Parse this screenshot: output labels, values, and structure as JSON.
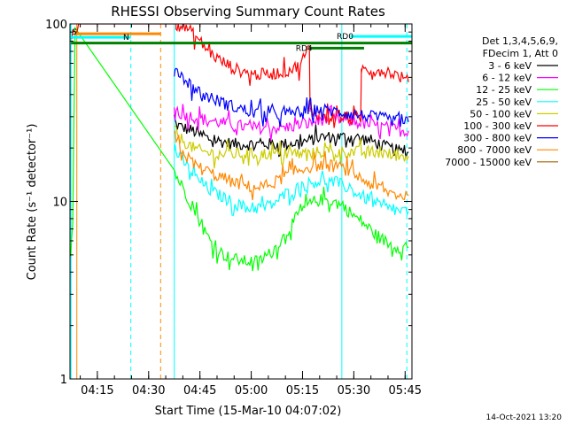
{
  "chart_data": {
    "type": "line",
    "title": "RHESSI Observing Summary Count Rates",
    "xlabel": "Start Time (15-Mar-10 04:07:02)",
    "ylabel": "Count Rate (s⁻¹ detector⁻¹)",
    "yscale": "log",
    "ylim": [
      1,
      100
    ],
    "xlim_minutes": [
      7.0,
      107.0
    ],
    "x_start": "04:07:00",
    "x_ticks": [
      {
        "minute": 15,
        "label": "04:15"
      },
      {
        "minute": 30,
        "label": "04:30"
      },
      {
        "minute": 45,
        "label": "04:45"
      },
      {
        "minute": 60,
        "label": "05:00"
      },
      {
        "minute": 75,
        "label": "05:15"
      },
      {
        "minute": 90,
        "label": "05:30"
      },
      {
        "minute": 105,
        "label": "05:45"
      }
    ],
    "y_ticks": [
      {
        "value": 1,
        "label": "1"
      },
      {
        "value": 10,
        "label": "10"
      },
      {
        "value": 100,
        "label": "100"
      }
    ],
    "legend": {
      "header": [
        "Det 1,3,4,5,6,9,",
        "FDecim 1, Att 0"
      ],
      "placement": "right"
    },
    "series": [
      {
        "name": "3 - 6 keV",
        "color": "#000000",
        "x": [
          37.5,
          38,
          40,
          43,
          46,
          50,
          55,
          60,
          65,
          70,
          74,
          77,
          80,
          85,
          90,
          95,
          100,
          104,
          106
        ],
        "y": [
          30,
          27,
          26,
          25,
          23,
          22,
          21,
          21,
          21,
          21,
          21.5,
          22,
          23,
          23,
          23,
          22,
          20,
          19,
          19
        ]
      },
      {
        "name": "6 - 12 keV",
        "color": "#ff00ff",
        "x": [
          37.5,
          38,
          40,
          43,
          46,
          50,
          55,
          60,
          65,
          70,
          74,
          77,
          80,
          85,
          90,
          95,
          100,
          104,
          106
        ],
        "y": [
          33,
          32,
          31,
          30,
          29,
          28,
          27,
          26,
          26,
          26,
          27,
          27.5,
          29,
          29,
          28,
          27,
          26,
          25,
          25
        ]
      },
      {
        "name": "12 - 25 keV",
        "color": "#00ff00",
        "x": [
          7.2,
          7.8,
          8.5,
          37.5,
          38,
          40,
          42,
          44,
          46,
          48,
          50,
          52,
          54,
          56,
          58,
          60,
          62,
          64,
          66,
          68,
          70,
          72,
          74,
          76,
          78,
          80,
          82,
          84,
          86,
          88,
          90,
          92,
          94,
          96,
          98,
          100,
          102,
          104,
          106
        ],
        "y": [
          5,
          8,
          95,
          15,
          14,
          12,
          10,
          8.5,
          7,
          6,
          5.4,
          5,
          4.8,
          4.7,
          4.6,
          4.6,
          4.6,
          4.8,
          5.2,
          5.8,
          6.5,
          7.5,
          8.5,
          9.3,
          9.9,
          10.2,
          10.2,
          10,
          9.6,
          9,
          8.3,
          7.8,
          7.2,
          6.6,
          6.2,
          5.8,
          5.6,
          5.5,
          5.5
        ]
      },
      {
        "name": "25 - 50 keV",
        "color": "#00ffff",
        "x": [
          37.5,
          38,
          40,
          42,
          44,
          46,
          48,
          50,
          52,
          54,
          56,
          58,
          60,
          62,
          64,
          66,
          68,
          70,
          72,
          74,
          76,
          78,
          80,
          82,
          84,
          86,
          88,
          90,
          92,
          94,
          96,
          98,
          100,
          102,
          104,
          106
        ],
        "y": [
          20,
          19,
          17,
          15,
          13.5,
          12.5,
          11.5,
          11,
          10.5,
          10,
          9.6,
          9.3,
          9.2,
          9.2,
          9.3,
          9.6,
          10.2,
          11,
          11.5,
          12,
          12.5,
          12.8,
          13,
          13,
          12.8,
          12.5,
          12,
          11.4,
          10.8,
          10.3,
          9.8,
          9.4,
          9.1,
          8.9,
          8.8,
          8.8
        ]
      },
      {
        "name": "50 - 100 keV",
        "color": "#cccc00",
        "x": [
          37.5,
          38,
          40,
          43,
          46,
          50,
          55,
          60,
          65,
          70,
          74,
          77,
          80,
          85,
          90,
          95,
          100,
          104,
          106
        ],
        "y": [
          25,
          24,
          22,
          20,
          19,
          18.5,
          18.5,
          18.5,
          18.5,
          18.5,
          18.5,
          18.5,
          19,
          19,
          19,
          19,
          18.5,
          18,
          18
        ]
      },
      {
        "name": "100 - 300 keV",
        "color": "#ff0000",
        "x": [
          7.5,
          8.3,
          9.0,
          9.5,
          38,
          39,
          41,
          43,
          45,
          47,
          50,
          55,
          60,
          65,
          70,
          74,
          76,
          77,
          77.2,
          80,
          85,
          90,
          92,
          92.2,
          95,
          100,
          104,
          106
        ],
        "y": [
          85,
          90,
          96,
          100,
          100,
          98,
          95,
          88,
          80,
          72,
          64,
          56,
          52,
          52,
          54,
          58,
          68,
          75,
          32,
          31,
          30,
          29,
          28,
          56,
          55,
          54,
          50,
          47
        ]
      },
      {
        "name": "300 - 800 keV",
        "color": "#0000ff",
        "x": [
          37.5,
          38,
          40,
          43,
          46,
          50,
          55,
          60,
          65,
          70,
          74,
          77,
          80,
          85,
          90,
          95,
          100,
          104,
          106
        ],
        "y": [
          60,
          56,
          50,
          44,
          40,
          37,
          34,
          32,
          31,
          31,
          32,
          32,
          33,
          32,
          31,
          30,
          29,
          28,
          28
        ]
      },
      {
        "name": "800 - 7000 keV",
        "color": "#ff8800",
        "x": [
          37.5,
          38,
          40,
          42,
          44,
          46,
          48,
          50,
          52,
          54,
          56,
          58,
          60,
          62,
          64,
          66,
          68,
          70,
          72,
          74,
          76,
          78,
          80,
          82,
          84,
          86,
          88,
          90,
          92,
          94,
          96,
          98,
          100,
          102,
          104,
          106
        ],
        "y": [
          24,
          22,
          19,
          17,
          16,
          15,
          14.5,
          14,
          13.5,
          13,
          12.6,
          12.3,
          12,
          12,
          12.2,
          12.6,
          13.2,
          14,
          14.5,
          15,
          15.5,
          15.8,
          16,
          16,
          15.8,
          15.5,
          15,
          14.3,
          13.5,
          12.8,
          12.2,
          11.7,
          11.3,
          11,
          10.8,
          10.8
        ]
      },
      {
        "name": "7000 - 15000 keV",
        "color": "#a06000",
        "x": [],
        "y": []
      }
    ],
    "flags": [
      {
        "label": "S",
        "color": "#00ffff",
        "x_range": [
          7.0,
          7.3
        ],
        "y": 90
      },
      {
        "label": "",
        "color": "#ff8800",
        "x_range": [
          8.3,
          33.5
        ],
        "y": 88
      },
      {
        "label": "N",
        "color": "#00ffff",
        "x_range": [
          7.3,
          24.8
        ],
        "y": 84
      },
      {
        "label": "",
        "color": "#008000",
        "x_range": [
          7.3,
          107
        ],
        "y": 78
      },
      {
        "label": "RD4",
        "color": "#008000",
        "x_range": [
          77,
          93
        ],
        "y": 73
      },
      {
        "label": "RD0",
        "color": "#00ffff",
        "x_range": [
          89,
          107
        ],
        "y": 85
      }
    ],
    "markers": [
      {
        "minute": 7.3,
        "color": "#00ffff",
        "style": "solid"
      },
      {
        "minute": 9.0,
        "color": "#ff8800",
        "style": "solid"
      },
      {
        "minute": 24.8,
        "color": "#00ffff",
        "style": "dashed"
      },
      {
        "minute": 33.5,
        "color": "#ff8800",
        "style": "dashed"
      },
      {
        "minute": 37.5,
        "color": "#00ffff",
        "style": "solid"
      },
      {
        "minute": 86.5,
        "color": "#00ffff",
        "style": "solid"
      },
      {
        "minute": 105.5,
        "color": "#00ffff",
        "style": "dashed"
      }
    ],
    "footer": "14-Oct-2021 13:20"
  }
}
